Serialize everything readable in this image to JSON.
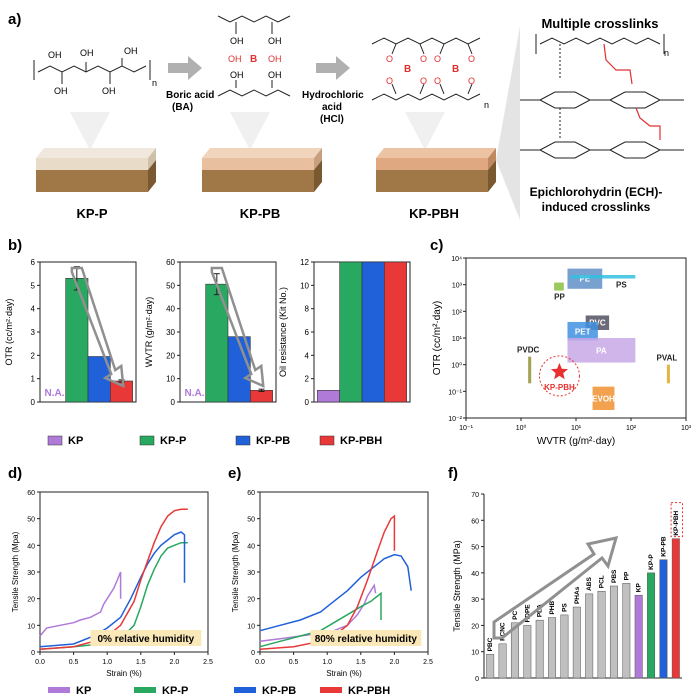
{
  "panel_labels": {
    "a": "a)",
    "b": "b)",
    "c": "c)",
    "d": "d)",
    "e": "e)",
    "f": "f)"
  },
  "schematic": {
    "samples": [
      "KP-P",
      "KP-PB",
      "KP-PBH"
    ],
    "arrow1_label": [
      "Boric acid",
      "(BA)"
    ],
    "arrow2_label": [
      "Hydrochloric",
      "acid",
      "(HCl)"
    ],
    "multiple_crosslinks": "Multiple crosslinks",
    "ech_label": [
      "Epichlorohydrin (ECH)-",
      "induced crosslinks"
    ],
    "chem": {
      "oh": "OH",
      "b": "B",
      "o": "O",
      "n": "n"
    },
    "colors": {
      "top_p": "#e8dcc8",
      "top_pb": "#e8c0a0",
      "top_pbh": "#e0a880",
      "base": "#a07848",
      "red": "#e03030",
      "arrow": "#b0b0b0"
    }
  },
  "legend_b": [
    {
      "name": "KP",
      "color": "#b07ad8"
    },
    {
      "name": "KP-P",
      "color": "#28a860"
    },
    {
      "name": "KP-PB",
      "color": "#2060d8"
    },
    {
      "name": "KP-PBH",
      "color": "#e83838"
    }
  ],
  "legend_de": [
    {
      "name": "KP",
      "color": "#b07ad8"
    },
    {
      "name": "KP-P",
      "color": "#28a860"
    },
    {
      "name": "KP-PB",
      "color": "#2060d8"
    },
    {
      "name": "KP-PBH",
      "color": "#e83838"
    }
  ],
  "chart_data": [
    {
      "id": "b1",
      "type": "bar",
      "ylabel": "OTR (cc/m²·day)",
      "ylim": [
        0,
        6
      ],
      "yticks": [
        0,
        1,
        2,
        3,
        4,
        5,
        6
      ],
      "categories": [
        "KP",
        "KP-P",
        "KP-PB",
        "KP-PBH"
      ],
      "values": [
        null,
        5.3,
        1.95,
        0.9
      ],
      "errors": [
        null,
        0.5,
        0,
        0.05
      ],
      "na_label": "N.A."
    },
    {
      "id": "b2",
      "type": "bar",
      "ylabel": "WVTR (g/m²·day)",
      "ylim": [
        0,
        60
      ],
      "yticks": [
        0,
        10,
        20,
        30,
        40,
        50,
        60
      ],
      "categories": [
        "KP",
        "KP-P",
        "KP-PB",
        "KP-PBH"
      ],
      "values": [
        null,
        50.5,
        28,
        5
      ],
      "errors": [
        null,
        4.5,
        0,
        0.5
      ],
      "na_label": "N.A."
    },
    {
      "id": "b3",
      "type": "bar",
      "ylabel": "Oil resistance (Kit No.)",
      "ylim": [
        0,
        12
      ],
      "yticks": [
        0,
        2,
        4,
        6,
        8,
        10,
        12
      ],
      "categories": [
        "KP",
        "KP-P",
        "KP-PB",
        "KP-PBH"
      ],
      "values": [
        1,
        12,
        12,
        12
      ]
    },
    {
      "id": "c",
      "type": "scatter",
      "xlabel": "WVTR (g/m²·day)",
      "ylabel": "OTR (cc/m²·day)",
      "xscale": "log",
      "yscale": "log",
      "xlim": [
        0.1,
        1000
      ],
      "ylim": [
        0.01,
        10000
      ],
      "xticks": [
        "10⁻¹",
        "10⁰",
        "10¹",
        "10²",
        "10³"
      ],
      "yticks": [
        "10⁻²",
        "10⁻¹",
        "10⁰",
        "10¹",
        "10²",
        "10³",
        "10⁴"
      ],
      "regions": [
        {
          "name": "PP",
          "x": [
            4,
            6
          ],
          "y": [
            600,
            1200
          ],
          "color": "#88c040"
        },
        {
          "name": "PE",
          "x": [
            7,
            30
          ],
          "y": [
            700,
            4000
          ],
          "color": "#6090c8"
        },
        {
          "name": "PS",
          "x": [
            8,
            120
          ],
          "y": [
            1700,
            2300
          ],
          "color": "#30c0e0"
        },
        {
          "name": "PVC",
          "x": [
            15,
            40
          ],
          "y": [
            20,
            70
          ],
          "color": "#505060"
        },
        {
          "name": "PET",
          "x": [
            7,
            25
          ],
          "y": [
            8,
            40
          ],
          "color": "#4090e0"
        },
        {
          "name": "PA",
          "x": [
            7,
            120
          ],
          "y": [
            1.2,
            10
          ],
          "color": "#c8a8e8"
        },
        {
          "name": "PVDC",
          "x": [
            1.35,
            1.5
          ],
          "y": [
            0.2,
            2
          ],
          "color": "#909030"
        },
        {
          "name": "PVAL",
          "x": [
            450,
            500
          ],
          "y": [
            0.2,
            1
          ],
          "color": "#e0a820"
        },
        {
          "name": "EVOH",
          "x": [
            20,
            50
          ],
          "y": [
            0.02,
            0.15
          ],
          "color": "#f09030"
        }
      ],
      "point": {
        "name": "KP-PBH",
        "x": 5,
        "y": 0.9,
        "color": "#e83030"
      }
    },
    {
      "id": "d",
      "type": "line",
      "xlabel": "Strain (%)",
      "ylabel": "Tensile Strength (Mpa)",
      "xlim": [
        0,
        2.5
      ],
      "ylim": [
        0,
        60
      ],
      "xticks": [
        0.0,
        0.5,
        1.0,
        1.5,
        2.0,
        2.5
      ],
      "yticks": [
        0,
        10,
        20,
        30,
        40,
        50,
        60
      ],
      "annotation": "0% relative humidity",
      "series": [
        {
          "name": "KP",
          "x": [
            0,
            0.1,
            0.3,
            0.5,
            0.6,
            0.75,
            0.9,
            0.95,
            1.0,
            1.05,
            1.1,
            1.15,
            1.2,
            1.2
          ],
          "y": [
            6,
            9,
            10,
            11,
            12,
            13,
            15,
            18,
            20,
            22,
            24,
            27,
            30,
            20
          ]
        },
        {
          "name": "KP-P",
          "x": [
            0,
            0.5,
            0.9,
            1.2,
            1.4,
            1.5,
            1.6,
            1.7,
            1.8,
            1.9,
            2.0,
            2.1,
            2.2
          ],
          "y": [
            1,
            2,
            3,
            5,
            10,
            17,
            25,
            31,
            36,
            39,
            40,
            41,
            41
          ]
        },
        {
          "name": "KP-PB",
          "x": [
            0,
            0.5,
            0.8,
            1.0,
            1.2,
            1.35,
            1.5,
            1.6,
            1.7,
            1.8,
            1.9,
            2.0,
            2.1,
            2.15,
            2.15
          ],
          "y": [
            2,
            3,
            6,
            9,
            13,
            20,
            28,
            33,
            37,
            40,
            42,
            44,
            45,
            44,
            26
          ]
        },
        {
          "name": "KP-PBH",
          "x": [
            0,
            0.5,
            0.8,
            1.0,
            1.2,
            1.4,
            1.5,
            1.6,
            1.7,
            1.8,
            1.9,
            2.0,
            2.1,
            2.2
          ],
          "y": [
            1,
            2,
            4,
            6,
            10,
            19,
            27,
            34,
            41,
            47,
            51,
            53,
            53.5,
            53.5
          ]
        }
      ]
    },
    {
      "id": "e",
      "type": "line",
      "xlabel": "Strain (%)",
      "ylabel": "Tensile Strength (Mpa)",
      "xlim": [
        0,
        2.5
      ],
      "ylim": [
        0,
        60
      ],
      "xticks": [
        0.0,
        0.5,
        1.0,
        1.5,
        2.0,
        2.5
      ],
      "yticks": [
        0,
        10,
        20,
        30,
        40,
        50,
        60
      ],
      "annotation": "80% relative humidity",
      "series": [
        {
          "name": "KP",
          "x": [
            0,
            0.3,
            0.6,
            0.9,
            1.1,
            1.3,
            1.45,
            1.55,
            1.6,
            1.65,
            1.7,
            1.72
          ],
          "y": [
            4,
            5,
            6,
            7,
            8,
            10,
            14,
            18,
            21,
            23,
            25,
            22
          ]
        },
        {
          "name": "KP-P",
          "x": [
            0,
            0.3,
            0.6,
            0.9,
            1.1,
            1.3,
            1.5,
            1.65,
            1.75,
            1.8,
            1.8
          ],
          "y": [
            2,
            4,
            6,
            8,
            11,
            14,
            17,
            19,
            21,
            22,
            12
          ]
        },
        {
          "name": "KP-PB",
          "x": [
            0,
            0.3,
            0.6,
            0.9,
            1.1,
            1.3,
            1.5,
            1.7,
            1.85,
            2.0,
            2.1,
            2.2,
            2.25
          ],
          "y": [
            8,
            10,
            12,
            15,
            19,
            23,
            28,
            32,
            35,
            36.5,
            36,
            32,
            23
          ]
        },
        {
          "name": "KP-PBH",
          "x": [
            0,
            0.5,
            0.9,
            1.1,
            1.3,
            1.45,
            1.6,
            1.75,
            1.85,
            1.95,
            2.0,
            2.0
          ],
          "y": [
            1,
            2,
            4,
            6,
            10,
            17,
            27,
            38,
            45,
            50,
            51,
            38
          ]
        }
      ]
    },
    {
      "id": "f",
      "type": "bar",
      "ylabel": "Tensile Strength (MPa)",
      "ylim": [
        0,
        70
      ],
      "yticks": [
        0,
        10,
        20,
        30,
        40,
        50,
        60,
        70
      ],
      "categories": [
        "PBC",
        "PCNC",
        "PC",
        "HDPE",
        "PLA",
        "PHB",
        "PS",
        "PHAs",
        "ABS",
        "PCL",
        "PBS",
        "PP",
        "KP",
        "KP-P",
        "KP-PB",
        "KP-PBH"
      ],
      "values": [
        9,
        13,
        21,
        20,
        22,
        23,
        24,
        27,
        32,
        33,
        35,
        36,
        31.5,
        40,
        45,
        53
      ],
      "colors": [
        "#c0c0c0",
        "#c0c0c0",
        "#c0c0c0",
        "#c0c0c0",
        "#c0c0c0",
        "#c0c0c0",
        "#c0c0c0",
        "#c0c0c0",
        "#c0c0c0",
        "#c0c0c0",
        "#c0c0c0",
        "#c0c0c0",
        "#b07ad8",
        "#28a860",
        "#2060d8",
        "#e83838"
      ]
    }
  ]
}
